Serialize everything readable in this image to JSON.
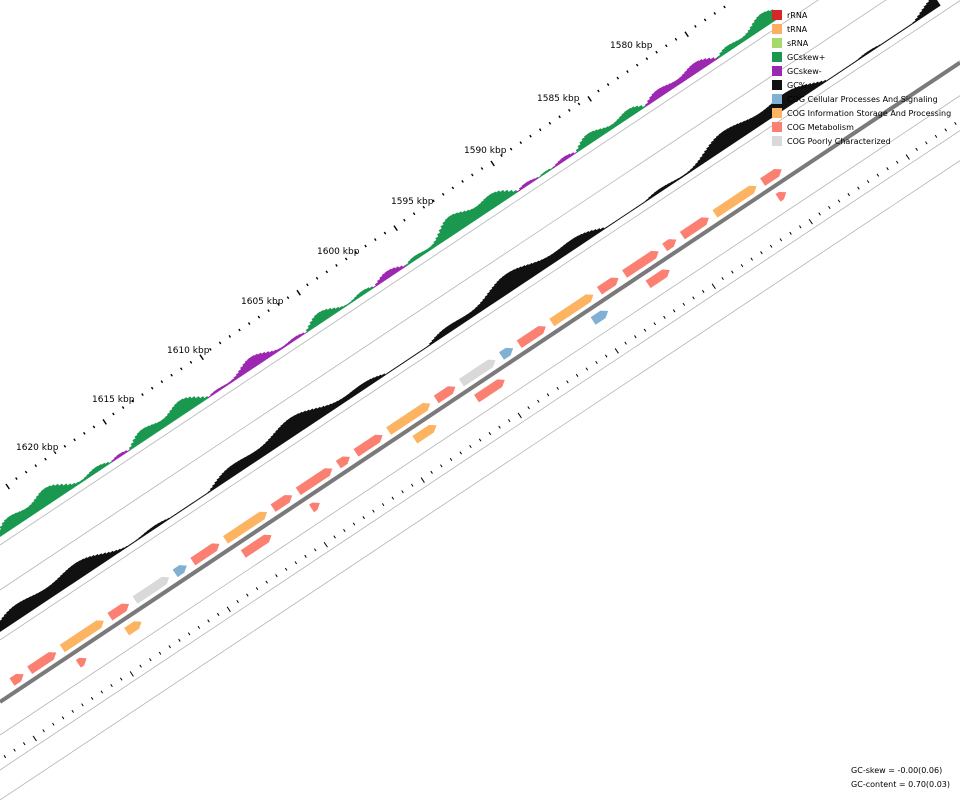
{
  "map": {
    "position_labels": [
      "1580 kbp",
      "1585 kbp",
      "1590 kbp",
      "1595 kbp",
      "1600 kbp",
      "1605 kbp",
      "1610 kbp",
      "1615 kbp",
      "1620 kbp"
    ]
  },
  "legend": {
    "items": [
      {
        "label": "rRNA",
        "color": "#d62728"
      },
      {
        "label": "tRNA",
        "color": "#fdae61"
      },
      {
        "label": "sRNA",
        "color": "#a6d96a"
      },
      {
        "label": "GCskew+",
        "color": "#1a9850"
      },
      {
        "label": "GCskew-",
        "color": "#9c27b0"
      },
      {
        "label": "GC%",
        "color": "#111111"
      },
      {
        "label": "COG Cellular Processes And Signaling",
        "color": "#80b1d3"
      },
      {
        "label": "COG Information Storage And Processing",
        "color": "#fdb462"
      },
      {
        "label": "COG Metabolism",
        "color": "#fb8072"
      },
      {
        "label": "COG Poorly Characterized",
        "color": "#d9d9d9"
      }
    ]
  },
  "stats": {
    "gc_skew": "GC-skew = -0.00(0.06)",
    "gc_content": "GC-content = 0.70(0.03)"
  }
}
